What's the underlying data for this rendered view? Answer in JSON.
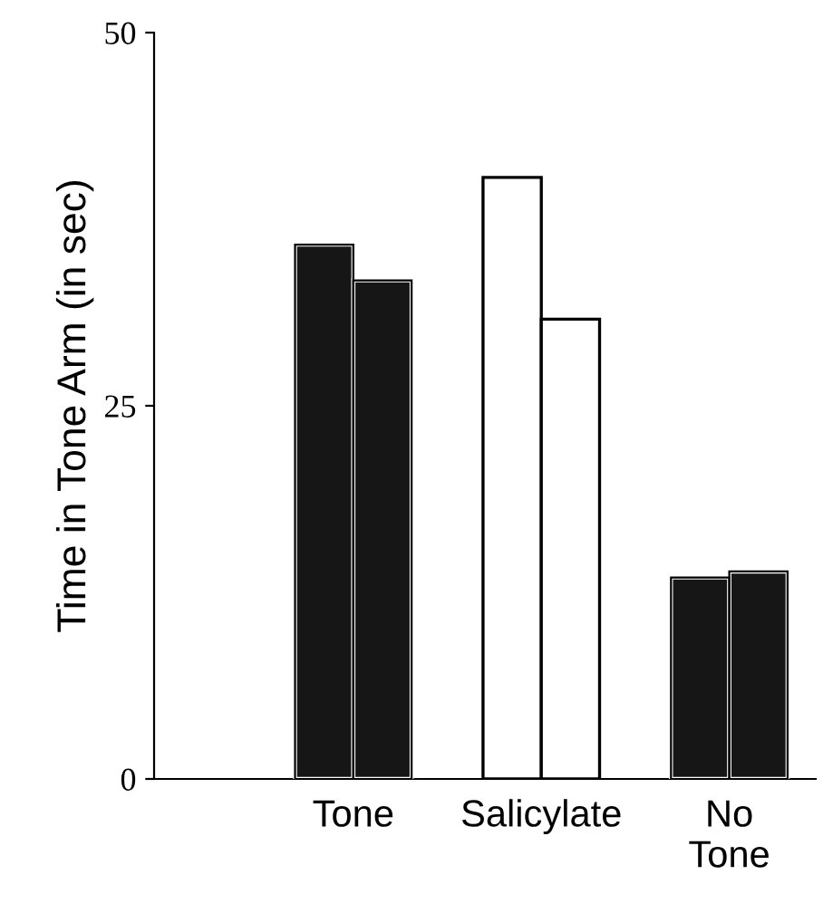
{
  "chart_data": {
    "type": "bar",
    "ylabel": "Time in Tone Arm (in sec)",
    "categories": [
      "Tone",
      "Salicylate",
      "No\nTone"
    ],
    "series": [
      {
        "colors": [
          "#161616",
          "#ffffff",
          "#161616"
        ],
        "values": [
          35.8,
          40.3,
          13.5
        ]
      },
      {
        "colors": [
          "#161616",
          "#ffffff",
          "#161616"
        ],
        "values": [
          33.4,
          30.8,
          13.9
        ]
      }
    ],
    "ylim": [
      0,
      50
    ],
    "yticks": [
      0,
      25,
      50
    ],
    "grid": false,
    "legend": false
  }
}
